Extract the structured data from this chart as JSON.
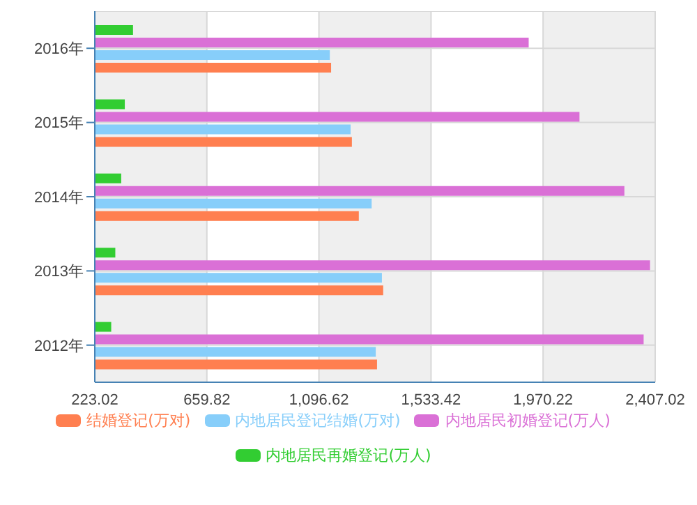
{
  "chart_data": {
    "type": "bar",
    "orientation": "horizontal",
    "categories": [
      "2016年",
      "2015年",
      "2014年",
      "2013年",
      "2012年"
    ],
    "series": [
      {
        "name": "结婚登记(万对)",
        "color": "#ff7f50",
        "values": [
          1144,
          1225,
          1252,
          1347,
          1323
        ]
      },
      {
        "name": "内地居民登记结婚(万对)",
        "color": "#87cefa",
        "values": [
          1139,
          1220,
          1302,
          1342,
          1318
        ]
      },
      {
        "name": "内地居民初婚登记(万人)",
        "color": "#da70d6",
        "values": [
          1914,
          2112,
          2287,
          2387,
          2362
        ]
      },
      {
        "name": "内地居民再婚登记(万人)",
        "color": "#32cd32",
        "values": [
          372,
          340,
          326,
          303,
          287
        ]
      }
    ],
    "xlim": [
      223.02,
      2407.02
    ],
    "xticks": [
      {
        "value": 223.02,
        "label": "223.02"
      },
      {
        "value": 659.82,
        "label": "659.82"
      },
      {
        "value": 1096.62,
        "label": "1,096.62"
      },
      {
        "value": 1533.42,
        "label": "1,533.42"
      },
      {
        "value": 1970.22,
        "label": "1,970.22"
      },
      {
        "value": 2407.02,
        "label": "2,407.02"
      }
    ],
    "grid": true,
    "legend": "bottom"
  }
}
